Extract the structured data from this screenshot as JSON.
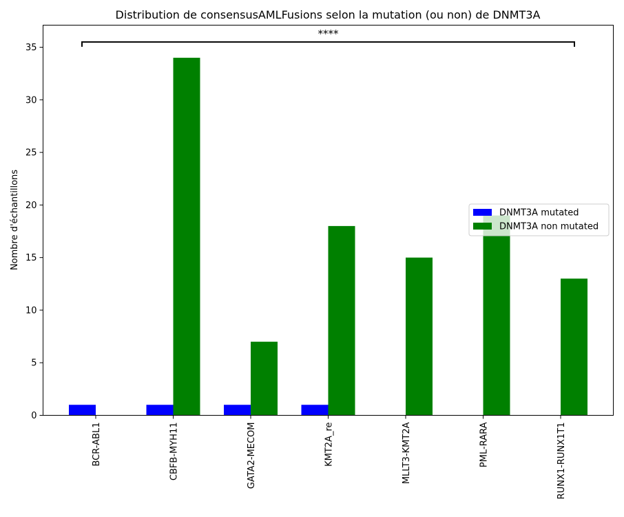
{
  "chart_data": {
    "type": "bar",
    "title": "Distribution de consensusAMLFusions selon la mutation (ou non) de DNMT3A",
    "xlabel": "",
    "ylabel": "Nombre d'échantillons",
    "categories": [
      "BCR-ABL1",
      "CBFB-MYH11",
      "GATA2-MECOM",
      "KMT2A_re",
      "MLLT3-KMT2A",
      "PML-RARA",
      "RUNX1-RUNX1T1"
    ],
    "series": [
      {
        "name": "DNMT3A mutated",
        "color": "#0000ff",
        "values": [
          1,
          1,
          1,
          1,
          0,
          0,
          0
        ]
      },
      {
        "name": "DNMT3A non mutated",
        "color": "#008000",
        "values": [
          0,
          34,
          7,
          18,
          15,
          19,
          13
        ]
      }
    ],
    "ylim": [
      0,
      37.1
    ],
    "yticks": [
      0,
      5,
      10,
      15,
      20,
      25,
      30,
      35
    ],
    "grid": false,
    "legend_position": "center-right",
    "annotation": {
      "text": "****",
      "y": 35.5,
      "from_category": "BCR-ABL1",
      "to_category": "RUNX1-RUNX1T1"
    }
  }
}
